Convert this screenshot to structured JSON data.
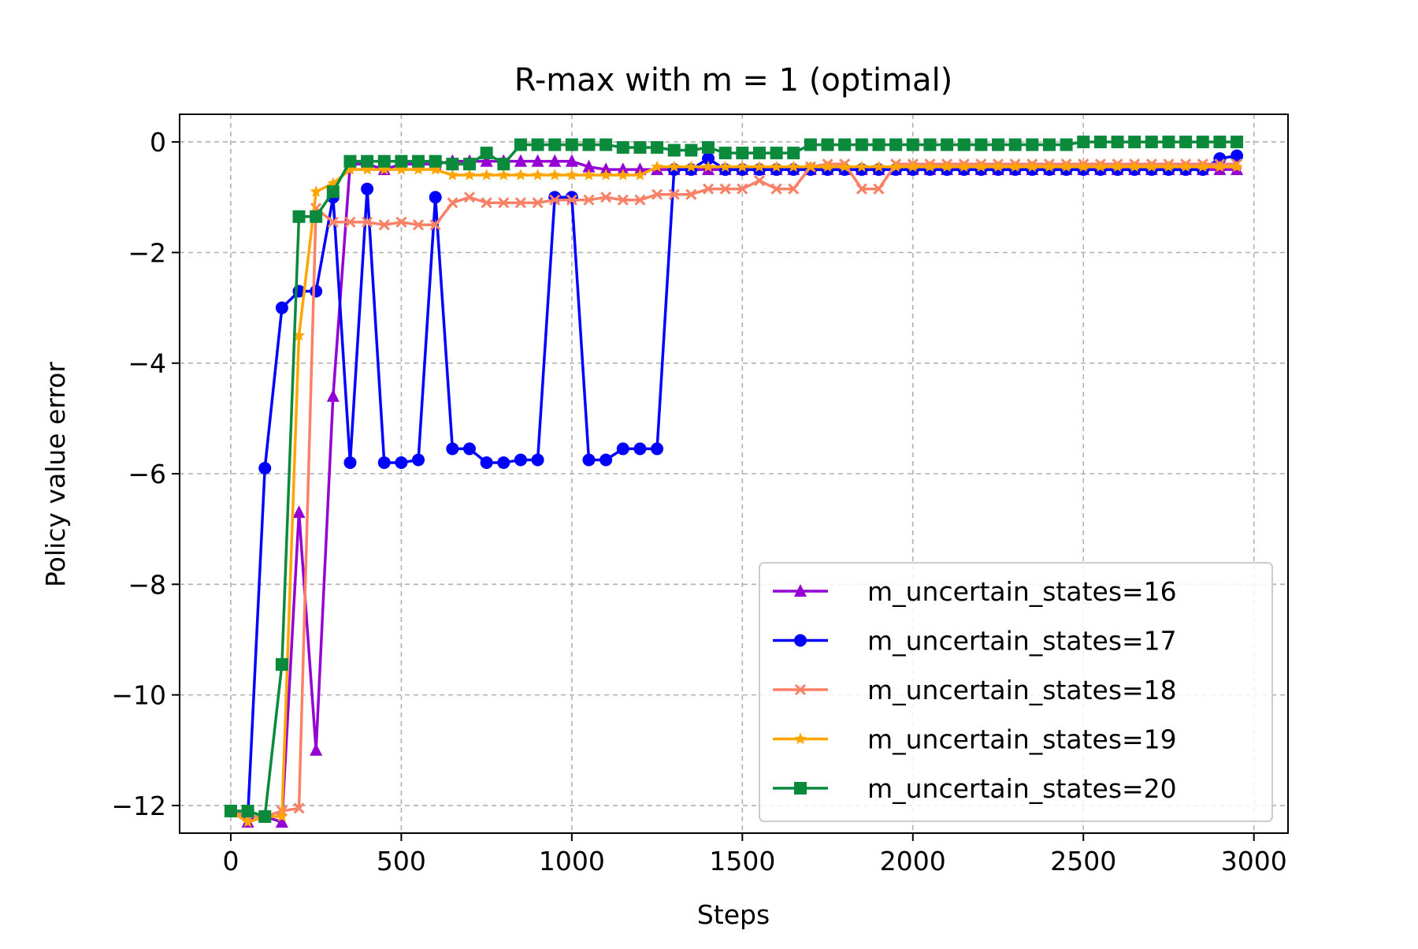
{
  "chart_data": {
    "type": "line",
    "title": "R-max with m = 1 (optimal)",
    "xlabel": "Steps",
    "ylabel": "Policy value error",
    "xlim": [
      -150,
      3100
    ],
    "ylim": [
      -12.5,
      0.5
    ],
    "xticks": [
      0,
      500,
      1000,
      1500,
      2000,
      2500,
      3000
    ],
    "xtick_labels": [
      "0",
      "500",
      "1000",
      "1500",
      "2000",
      "2500",
      "3000"
    ],
    "yticks": [
      0,
      -2,
      -4,
      -6,
      -8,
      -10,
      -12
    ],
    "ytick_labels": [
      "0",
      "−2",
      "−4",
      "−6",
      "−8",
      "−10",
      "−12"
    ],
    "grid": true,
    "legend_position": "lower-right",
    "series": [
      {
        "name": "m_uncertain_states=16",
        "color": "#9400d3",
        "marker": "triangle",
        "x": [
          0,
          50,
          100,
          150,
          200,
          250,
          300,
          350,
          400,
          450,
          500,
          550,
          600,
          650,
          700,
          750,
          800,
          850,
          900,
          950,
          1000,
          1050,
          1100,
          1150,
          1200,
          1250,
          1300,
          1350,
          1400,
          1450,
          1500,
          1550,
          1600,
          1650,
          1700,
          1750,
          1800,
          1850,
          1900,
          1950,
          2000,
          2050,
          2100,
          2150,
          2200,
          2250,
          2300,
          2350,
          2400,
          2450,
          2500,
          2550,
          2600,
          2650,
          2700,
          2750,
          2800,
          2850,
          2900,
          2950
        ],
        "y": [
          -12.1,
          -12.3,
          -12.2,
          -12.3,
          -6.7,
          -11.0,
          -4.6,
          -0.4,
          -0.4,
          -0.5,
          -0.4,
          -0.4,
          -0.4,
          -0.35,
          -0.35,
          -0.35,
          -0.35,
          -0.35,
          -0.35,
          -0.35,
          -0.35,
          -0.45,
          -0.5,
          -0.5,
          -0.5,
          -0.5,
          -0.5,
          -0.5,
          -0.5,
          -0.5,
          -0.5,
          -0.5,
          -0.5,
          -0.5,
          -0.5,
          -0.5,
          -0.5,
          -0.5,
          -0.5,
          -0.5,
          -0.5,
          -0.5,
          -0.5,
          -0.5,
          -0.5,
          -0.5,
          -0.5,
          -0.5,
          -0.5,
          -0.5,
          -0.5,
          -0.5,
          -0.5,
          -0.5,
          -0.5,
          -0.5,
          -0.5,
          -0.5,
          -0.5,
          -0.5
        ]
      },
      {
        "name": "m_uncertain_states=17",
        "color": "#0000ff",
        "marker": "circle",
        "x": [
          0,
          50,
          100,
          150,
          200,
          250,
          300,
          350,
          400,
          450,
          500,
          550,
          600,
          650,
          700,
          750,
          800,
          850,
          900,
          950,
          1000,
          1050,
          1100,
          1150,
          1200,
          1250,
          1300,
          1350,
          1400,
          1450,
          1500,
          1550,
          1600,
          1650,
          1700,
          1750,
          1800,
          1850,
          1900,
          1950,
          2000,
          2050,
          2100,
          2150,
          2200,
          2250,
          2300,
          2350,
          2400,
          2450,
          2500,
          2550,
          2600,
          2650,
          2700,
          2750,
          2800,
          2850,
          2900,
          2950
        ],
        "y": [
          -12.1,
          -12.2,
          -5.9,
          -3.0,
          -2.7,
          -2.7,
          -1.0,
          -5.8,
          -0.85,
          -5.8,
          -5.8,
          -5.75,
          -1.0,
          -5.55,
          -5.55,
          -5.8,
          -5.8,
          -5.75,
          -5.75,
          -1.0,
          -1.0,
          -5.75,
          -5.75,
          -5.55,
          -5.55,
          -5.55,
          -0.5,
          -0.5,
          -0.3,
          -0.5,
          -0.5,
          -0.5,
          -0.5,
          -0.5,
          -0.5,
          -0.5,
          -0.5,
          -0.5,
          -0.5,
          -0.5,
          -0.5,
          -0.5,
          -0.5,
          -0.5,
          -0.5,
          -0.5,
          -0.5,
          -0.5,
          -0.5,
          -0.5,
          -0.5,
          -0.5,
          -0.5,
          -0.5,
          -0.5,
          -0.5,
          -0.5,
          -0.5,
          -0.3,
          -0.25
        ]
      },
      {
        "name": "m_uncertain_states=18",
        "color": "#fa8066",
        "marker": "x",
        "x": [
          0,
          50,
          100,
          150,
          200,
          250,
          300,
          350,
          400,
          450,
          500,
          550,
          600,
          650,
          700,
          750,
          800,
          850,
          900,
          950,
          1000,
          1050,
          1100,
          1150,
          1200,
          1250,
          1300,
          1350,
          1400,
          1450,
          1500,
          1550,
          1600,
          1650,
          1700,
          1750,
          1800,
          1850,
          1900,
          1950,
          2000,
          2050,
          2100,
          2150,
          2200,
          2250,
          2300,
          2350,
          2400,
          2450,
          2500,
          2550,
          2600,
          2650,
          2700,
          2750,
          2800,
          2850,
          2900,
          2950
        ],
        "y": [
          -12.1,
          -12.2,
          -12.2,
          -12.1,
          -12.05,
          -1.2,
          -1.45,
          -1.45,
          -1.45,
          -1.5,
          -1.45,
          -1.5,
          -1.5,
          -1.1,
          -1.0,
          -1.1,
          -1.1,
          -1.1,
          -1.1,
          -1.05,
          -1.05,
          -1.05,
          -1.0,
          -1.05,
          -1.05,
          -0.95,
          -0.95,
          -0.95,
          -0.85,
          -0.85,
          -0.85,
          -0.7,
          -0.85,
          -0.85,
          -0.45,
          -0.4,
          -0.4,
          -0.85,
          -0.85,
          -0.4,
          -0.4,
          -0.4,
          -0.4,
          -0.4,
          -0.4,
          -0.4,
          -0.4,
          -0.4,
          -0.4,
          -0.4,
          -0.4,
          -0.4,
          -0.4,
          -0.4,
          -0.4,
          -0.4,
          -0.4,
          -0.4,
          -0.4,
          -0.4
        ]
      },
      {
        "name": "m_uncertain_states=19",
        "color": "#ffa500",
        "marker": "star",
        "x": [
          0,
          50,
          100,
          150,
          200,
          250,
          300,
          350,
          400,
          450,
          500,
          550,
          600,
          650,
          700,
          750,
          800,
          850,
          900,
          950,
          1000,
          1050,
          1100,
          1150,
          1200,
          1250,
          1300,
          1350,
          1400,
          1450,
          1500,
          1550,
          1600,
          1650,
          1700,
          1750,
          1800,
          1850,
          1900,
          1950,
          2000,
          2050,
          2100,
          2150,
          2200,
          2250,
          2300,
          2350,
          2400,
          2450,
          2500,
          2550,
          2600,
          2650,
          2700,
          2750,
          2800,
          2850,
          2900,
          2950
        ],
        "y": [
          -12.1,
          -12.3,
          -12.2,
          -12.2,
          -3.5,
          -0.9,
          -0.75,
          -0.5,
          -0.5,
          -0.5,
          -0.5,
          -0.5,
          -0.5,
          -0.6,
          -0.6,
          -0.6,
          -0.6,
          -0.6,
          -0.6,
          -0.6,
          -0.6,
          -0.6,
          -0.6,
          -0.6,
          -0.6,
          -0.45,
          -0.45,
          -0.45,
          -0.45,
          -0.45,
          -0.45,
          -0.45,
          -0.45,
          -0.45,
          -0.45,
          -0.45,
          -0.45,
          -0.45,
          -0.45,
          -0.45,
          -0.45,
          -0.45,
          -0.45,
          -0.45,
          -0.45,
          -0.45,
          -0.45,
          -0.45,
          -0.45,
          -0.45,
          -0.45,
          -0.45,
          -0.45,
          -0.45,
          -0.45,
          -0.45,
          -0.45,
          -0.45,
          -0.45,
          -0.45
        ]
      },
      {
        "name": "m_uncertain_states=20",
        "color": "#0a8a3a",
        "marker": "square",
        "x": [
          0,
          50,
          100,
          150,
          200,
          250,
          300,
          350,
          400,
          450,
          500,
          550,
          600,
          650,
          700,
          750,
          800,
          850,
          900,
          950,
          1000,
          1050,
          1100,
          1150,
          1200,
          1250,
          1300,
          1350,
          1400,
          1450,
          1500,
          1550,
          1600,
          1650,
          1700,
          1750,
          1800,
          1850,
          1900,
          1950,
          2000,
          2050,
          2100,
          2150,
          2200,
          2250,
          2300,
          2350,
          2400,
          2450,
          2500,
          2550,
          2600,
          2650,
          2700,
          2750,
          2800,
          2850,
          2900,
          2950
        ],
        "y": [
          -12.1,
          -12.1,
          -12.2,
          -9.45,
          -1.35,
          -1.35,
          -0.9,
          -0.35,
          -0.35,
          -0.35,
          -0.35,
          -0.35,
          -0.35,
          -0.4,
          -0.4,
          -0.2,
          -0.4,
          -0.05,
          -0.05,
          -0.05,
          -0.05,
          -0.05,
          -0.05,
          -0.1,
          -0.1,
          -0.1,
          -0.15,
          -0.15,
          -0.1,
          -0.2,
          -0.2,
          -0.2,
          -0.2,
          -0.2,
          -0.05,
          -0.05,
          -0.05,
          -0.05,
          -0.05,
          -0.05,
          -0.05,
          -0.05,
          -0.05,
          -0.05,
          -0.05,
          -0.05,
          -0.05,
          -0.05,
          -0.05,
          -0.05,
          0.0,
          0.0,
          0.0,
          0.0,
          0.0,
          0.0,
          0.0,
          0.0,
          0.0,
          0.0
        ]
      }
    ]
  }
}
